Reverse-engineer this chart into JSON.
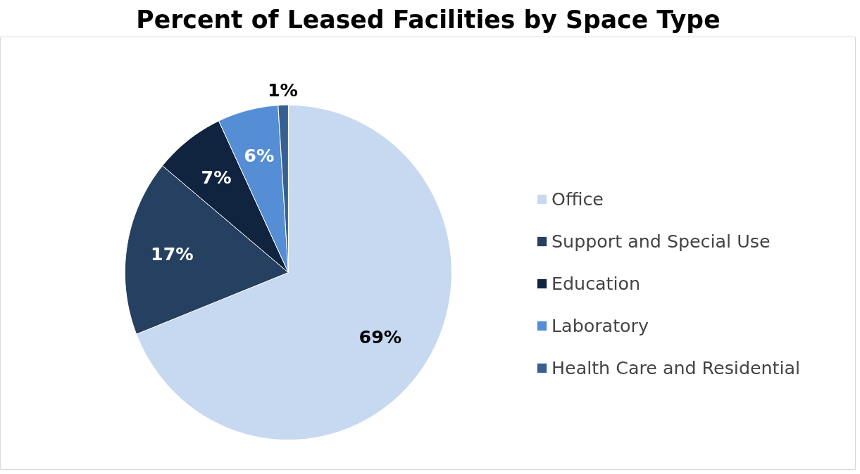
{
  "chart_data": {
    "type": "pie",
    "title": "Percent of Leased Facilities by Space Type",
    "categories": [
      "Office",
      "Support and Special Use",
      "Education",
      "Laboratory",
      "Health Care and Residential"
    ],
    "values": [
      69,
      17,
      7,
      6,
      1
    ],
    "colors": [
      "#c6d9f1",
      "#254061",
      "#10243f",
      "#558ed5",
      "#376092"
    ],
    "value_labels": [
      "69%",
      "17%",
      "7%",
      "6%",
      "1%"
    ],
    "legend": "right"
  }
}
